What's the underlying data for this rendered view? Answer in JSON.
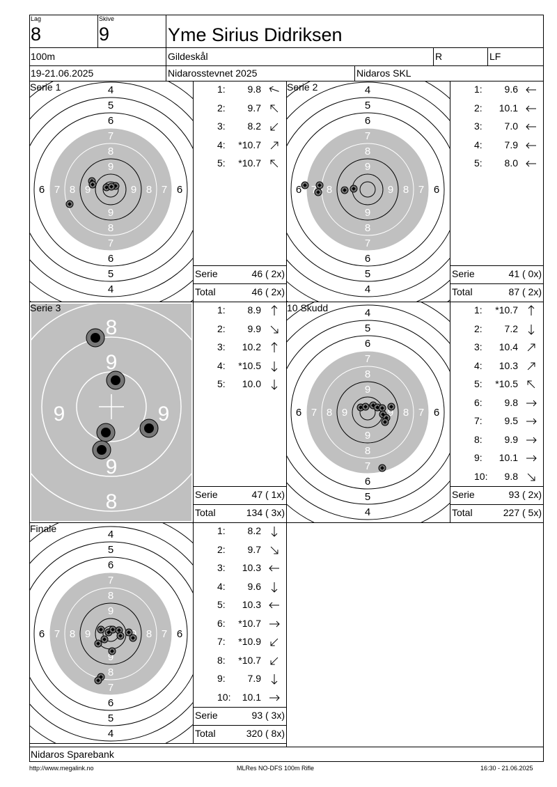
{
  "header": {
    "lag_label": "Lag",
    "lag_value": "8",
    "skive_label": "Skive",
    "skive_value": "9",
    "shooter_name": "Yme Sirius Didriksen",
    "distance": "100m",
    "club": "Gildeskål",
    "class": "R",
    "category": "LF",
    "dates": "19-21.06.2025",
    "event": "Nidarosstevnet 2025",
    "organizer": "Nidaros SKL"
  },
  "panels": [
    {
      "title": "Serie 1",
      "shots": [
        {
          "n": "1:",
          "v": "9.8",
          "dir": "arrow-west-northwest"
        },
        {
          "n": "2:",
          "v": "9.7",
          "dir": "arrow-northwest"
        },
        {
          "n": "3:",
          "v": "8.2",
          "dir": "arrow-southwest"
        },
        {
          "n": "4:",
          "v": "*10.7",
          "dir": "arrow-northeast"
        },
        {
          "n": "5:",
          "v": "*10.7",
          "dir": "arrow-northwest"
        }
      ],
      "serie_label": "Serie",
      "serie_value": "46 ( 2x)",
      "total_label": "Total",
      "total_value": "46 ( 2x)"
    },
    {
      "title": "Serie 2",
      "shots": [
        {
          "n": "1:",
          "v": "9.6",
          "dir": "arrow-west"
        },
        {
          "n": "2:",
          "v": "10.1",
          "dir": "arrow-west"
        },
        {
          "n": "3:",
          "v": "7.0",
          "dir": "arrow-west"
        },
        {
          "n": "4:",
          "v": "7.9",
          "dir": "arrow-west"
        },
        {
          "n": "5:",
          "v": "8.0",
          "dir": "arrow-west"
        }
      ],
      "serie_label": "Serie",
      "serie_value": "41 ( 0x)",
      "total_label": "Total",
      "total_value": "87 ( 2x)"
    },
    {
      "title": "Serie 3",
      "shots": [
        {
          "n": "1:",
          "v": "8.9",
          "dir": "arrow-north"
        },
        {
          "n": "2:",
          "v": "9.9",
          "dir": "arrow-southeast"
        },
        {
          "n": "3:",
          "v": "10.2",
          "dir": "arrow-north"
        },
        {
          "n": "4:",
          "v": "*10.5",
          "dir": "arrow-south"
        },
        {
          "n": "5:",
          "v": "10.0",
          "dir": "arrow-south"
        }
      ],
      "serie_label": "Serie",
      "serie_value": "47 ( 1x)",
      "total_label": "Total",
      "total_value": "134 ( 3x)"
    },
    {
      "title": "10 Skudd",
      "shots": [
        {
          "n": "1:",
          "v": "*10.7",
          "dir": "arrow-north"
        },
        {
          "n": "2:",
          "v": "7.2",
          "dir": "arrow-south"
        },
        {
          "n": "3:",
          "v": "10.4",
          "dir": "arrow-northeast"
        },
        {
          "n": "4:",
          "v": "10.3",
          "dir": "arrow-northeast"
        },
        {
          "n": "5:",
          "v": "*10.5",
          "dir": "arrow-northwest"
        },
        {
          "n": "6:",
          "v": "9.8",
          "dir": "arrow-east"
        },
        {
          "n": "7:",
          "v": "9.5",
          "dir": "arrow-east"
        },
        {
          "n": "8:",
          "v": "9.9",
          "dir": "arrow-east"
        },
        {
          "n": "9:",
          "v": "10.1",
          "dir": "arrow-east"
        },
        {
          "n": "10:",
          "v": "9.8",
          "dir": "arrow-southeast"
        }
      ],
      "serie_label": "Serie",
      "serie_value": "93 ( 2x)",
      "total_label": "Total",
      "total_value": "227 ( 5x)"
    },
    {
      "title": "Finale",
      "shots": [
        {
          "n": "1:",
          "v": "8.2",
          "dir": "arrow-south"
        },
        {
          "n": "2:",
          "v": "9.7",
          "dir": "arrow-southeast"
        },
        {
          "n": "3:",
          "v": "10.3",
          "dir": "arrow-west"
        },
        {
          "n": "4:",
          "v": "9.6",
          "dir": "arrow-south"
        },
        {
          "n": "5:",
          "v": "10.3",
          "dir": "arrow-west"
        },
        {
          "n": "6:",
          "v": "*10.7",
          "dir": "arrow-east"
        },
        {
          "n": "7:",
          "v": "*10.9",
          "dir": "arrow-southwest"
        },
        {
          "n": "8:",
          "v": "*10.7",
          "dir": "arrow-southwest"
        },
        {
          "n": "9:",
          "v": "7.9",
          "dir": "arrow-south"
        },
        {
          "n": "10:",
          "v": "10.1",
          "dir": "arrow-east"
        }
      ],
      "serie_label": "Serie",
      "serie_value": "93 ( 3x)",
      "total_label": "Total",
      "total_value": "320 ( 8x)"
    }
  ],
  "target": {
    "outer_numbers": [
      "4",
      "5",
      "6"
    ],
    "inner_numbers": [
      "7",
      "8",
      "9"
    ],
    "zoom_numbers": [
      "8",
      "9"
    ]
  },
  "footer": {
    "sponsor": "Nidaros Sparebank",
    "url": "http://www.megalink.no",
    "program": "MLRes NO-DFS 100m Rifle",
    "timestamp": "16:30 - 21.06.2025"
  },
  "colors": {
    "ring_fill": "#c0c0c0",
    "line": "#000000",
    "shot_fill": "#000000"
  }
}
